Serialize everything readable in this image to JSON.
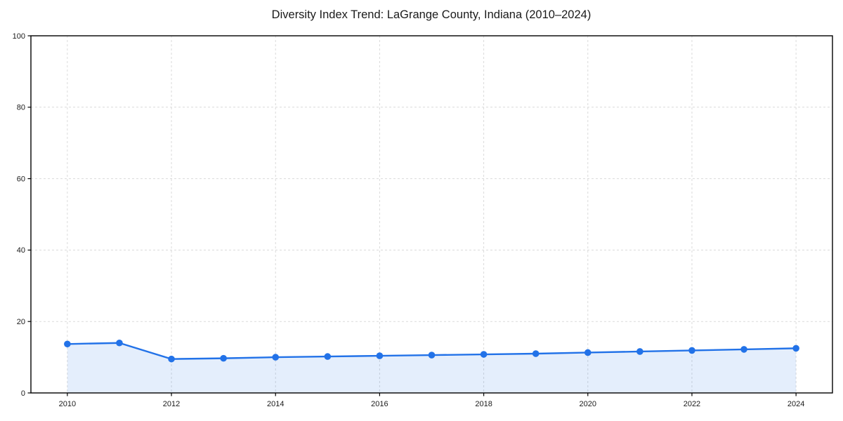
{
  "page": {
    "background": "#ffffff"
  },
  "chart_data": {
    "type": "line",
    "title": "Diversity Index Trend: LaGrange County, Indiana (2010–2024)",
    "x": [
      2010,
      2011,
      2012,
      2013,
      2014,
      2015,
      2016,
      2017,
      2018,
      2019,
      2020,
      2021,
      2022,
      2023,
      2024
    ],
    "series": [
      {
        "name": "Diversity Index",
        "values": [
          13.7,
          14.0,
          9.5,
          9.7,
          10.0,
          10.2,
          10.4,
          10.6,
          10.8,
          11.0,
          11.3,
          11.6,
          11.9,
          12.2,
          12.5
        ]
      }
    ],
    "xlabel": "",
    "ylabel": "",
    "xlim": [
      2009.3,
      2024.7
    ],
    "ylim": [
      0,
      100
    ],
    "xticks": [
      2010,
      2012,
      2014,
      2016,
      2018,
      2020,
      2022,
      2024
    ],
    "yticks": [
      0,
      20,
      40,
      60,
      80,
      100
    ],
    "grid": true,
    "grid_style": "dashed",
    "legend": "none",
    "colors": {
      "line": "#2272e8",
      "marker": "#2272e8",
      "area_fill": "rgba(34,114,232,0.12)",
      "grid": "#dadada",
      "spine": "#000000",
      "tick_label": "#1a1a1a",
      "title": "#1a1a1a"
    }
  }
}
